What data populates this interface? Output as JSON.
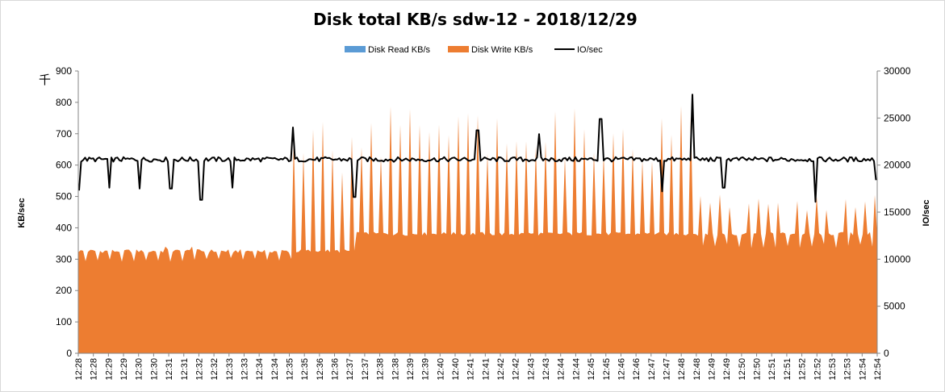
{
  "chart_data": {
    "type": "area",
    "title": "Disk total KB/s sdw-12 - 2018/12/29",
    "ylabel": "KB/sec",
    "y2label": "IO/sec",
    "y_unit_note": "千",
    "ylim": [
      0,
      900
    ],
    "y2lim": [
      0,
      30000
    ],
    "yticks": [
      "0",
      "100",
      "200",
      "300",
      "400",
      "500",
      "600",
      "700",
      "800",
      "900"
    ],
    "y2ticks": [
      "0",
      "5000",
      "10000",
      "15000",
      "20000",
      "25000",
      "30000"
    ],
    "xticks": [
      "12:28",
      "12:28",
      "12:29",
      "12:29",
      "12:30",
      "12:30",
      "12:31",
      "12:31",
      "12:32",
      "12:32",
      "12:33",
      "12:33",
      "12:34",
      "12:34",
      "12:35",
      "12:35",
      "12:36",
      "12:36",
      "12:37",
      "12:37",
      "12:38",
      "12:38",
      "12:39",
      "12:39",
      "12:40",
      "12:40",
      "12:41",
      "12:41",
      "12:42",
      "12:42",
      "12:43",
      "12:43",
      "12:44",
      "12:44",
      "12:45",
      "12:45",
      "12:46",
      "12:46",
      "12:47",
      "12:47",
      "12:48",
      "12:48",
      "12:49",
      "12:49",
      "12:50",
      "12:50",
      "12:51",
      "12:51",
      "12:52",
      "12:52",
      "12:53",
      "12:53",
      "12:54",
      "12:54"
    ],
    "grid": false,
    "legend_position": "top",
    "series": [
      {
        "name": "Disk Read KB/s",
        "kind": "area",
        "axis": "left",
        "color": "#5b9bd5",
        "values": []
      },
      {
        "name": "Disk Write KB/s",
        "kind": "area",
        "axis": "left",
        "color": "#ed7d31",
        "segments": [
          {
            "from": "12:28",
            "to": "12:35",
            "baseline": 330,
            "dips_to": 305,
            "spikes_to": 340
          },
          {
            "from": "12:35",
            "to": "12:37",
            "baseline": 330,
            "spikes_to": 750
          },
          {
            "from": "12:37",
            "to": "12:48",
            "baseline": 385,
            "spikes_to": 790
          },
          {
            "from": "12:48",
            "to": "12:54",
            "baseline": 385,
            "dips_to": 350,
            "spikes_to": 510
          }
        ]
      },
      {
        "name": "IO/sec",
        "kind": "line",
        "axis": "right",
        "color": "#000000",
        "baseline": 20600,
        "dips": [
          {
            "t": "12:28",
            "v": 17300
          },
          {
            "t": "12:29",
            "v": 17600
          },
          {
            "t": "12:30",
            "v": 17500
          },
          {
            "t": "12:31",
            "v": 17500
          },
          {
            "t": "12:32",
            "v": 17600
          },
          {
            "t": "12:32",
            "v": 16300
          },
          {
            "t": "12:33",
            "v": 17600
          },
          {
            "t": "12:35",
            "v": 17300
          },
          {
            "t": "12:37",
            "v": 16600
          },
          {
            "t": "12:43",
            "v": 17300
          },
          {
            "t": "12:47",
            "v": 17200
          },
          {
            "t": "12:49",
            "v": 17600
          },
          {
            "t": "12:52",
            "v": 16100
          },
          {
            "t": "12:54",
            "v": 18400
          }
        ],
        "peaks": [
          {
            "t": "12:35",
            "v": 24000
          },
          {
            "t": "12:41",
            "v": 23700
          },
          {
            "t": "12:43",
            "v": 23300
          },
          {
            "t": "12:45",
            "v": 24900
          },
          {
            "t": "12:48",
            "v": 27500
          }
        ]
      }
    ]
  }
}
